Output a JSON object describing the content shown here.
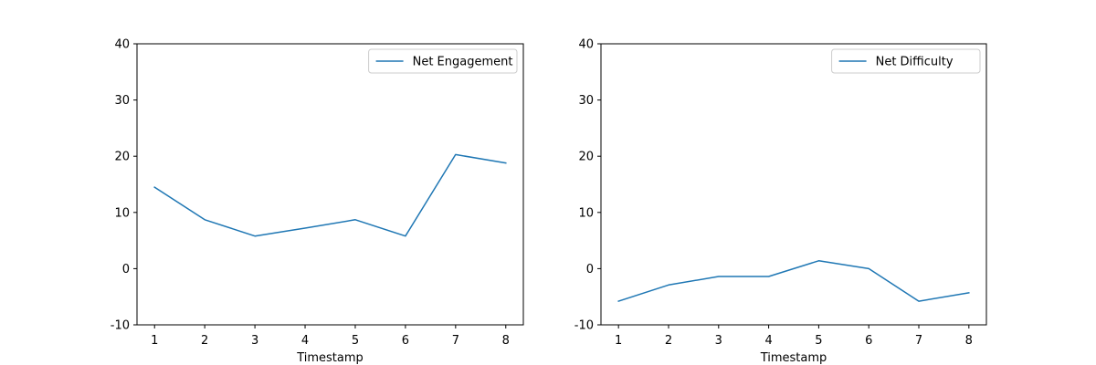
{
  "chart_data": [
    {
      "type": "line",
      "xlabel": "Timestamp",
      "ylabel": "",
      "x": [
        1,
        2,
        3,
        4,
        5,
        6,
        7,
        8
      ],
      "xticks": [
        1,
        2,
        3,
        4,
        5,
        6,
        7,
        8
      ],
      "xlim": [
        0.65,
        8.35
      ],
      "ylim": [
        -10,
        40
      ],
      "yticks": [
        -10,
        0,
        10,
        20,
        30,
        40
      ],
      "grid": false,
      "legend_position": "top-right",
      "series": [
        {
          "name": "Net Engagement",
          "color": "#1f77b4",
          "values": [
            14.5,
            8.7,
            5.8,
            7.2,
            8.7,
            5.8,
            20.3,
            18.8
          ]
        }
      ]
    },
    {
      "type": "line",
      "xlabel": "Timestamp",
      "ylabel": "",
      "x": [
        1,
        2,
        3,
        4,
        5,
        6,
        7,
        8
      ],
      "xticks": [
        1,
        2,
        3,
        4,
        5,
        6,
        7,
        8
      ],
      "xlim": [
        0.65,
        8.35
      ],
      "ylim": [
        -10,
        40
      ],
      "yticks": [
        -10,
        0,
        10,
        20,
        30,
        40
      ],
      "grid": false,
      "legend_position": "top-right",
      "series": [
        {
          "name": "Net Difficulty",
          "color": "#1f77b4",
          "values": [
            -5.8,
            -2.9,
            -1.4,
            -1.4,
            1.4,
            0.0,
            -5.8,
            -4.3
          ]
        }
      ]
    }
  ]
}
